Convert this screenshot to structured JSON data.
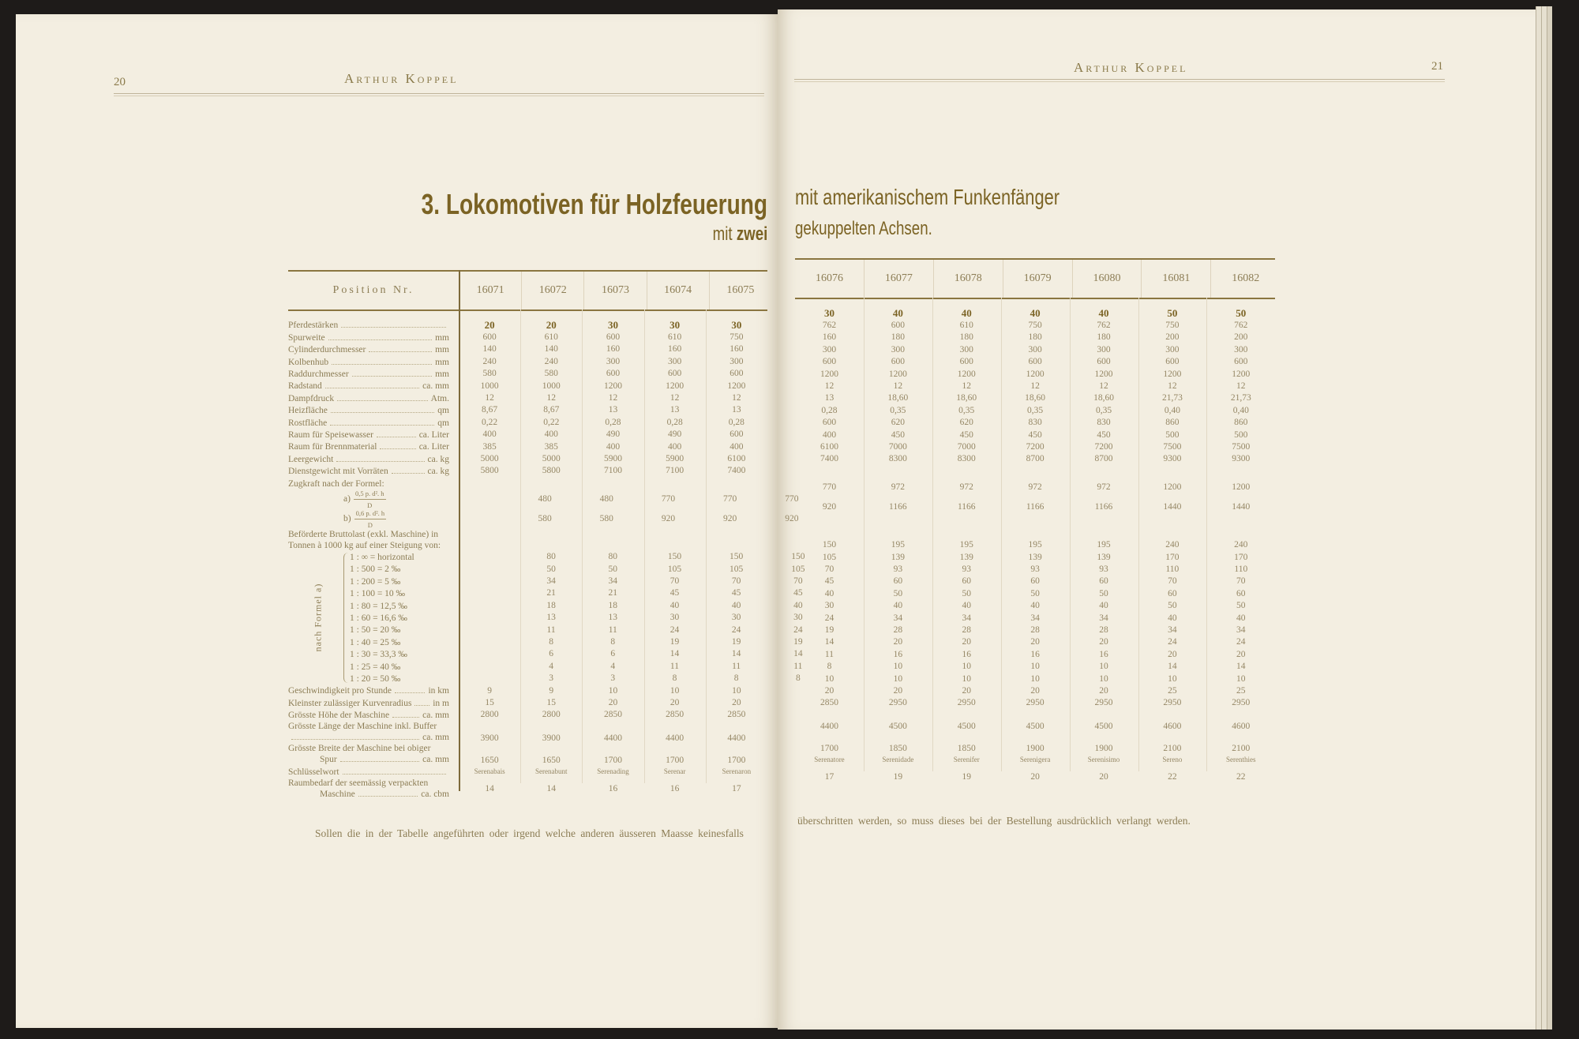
{
  "left_page": {
    "page_number": "20",
    "running_head": "Arthur Koppel"
  },
  "right_page": {
    "page_number": "21",
    "running_head": "Arthur Koppel"
  },
  "title": {
    "left_main": "3. Lokomotiven für Holzfeuerung",
    "left_sub_plain": "mit",
    "left_sub_bold": "zwei",
    "right_main": "mit amerikanischem Funkenfänger",
    "right_sub": "gekuppelten Achsen."
  },
  "table": {
    "position_header": "Position Nr.",
    "left_columns": [
      "16071",
      "16072",
      "16073",
      "16074",
      "16075"
    ],
    "right_columns": [
      "16076",
      "16077",
      "16078",
      "16079",
      "16080",
      "16081",
      "16082"
    ],
    "group_label": "nach Formel a)",
    "rows": [
      {
        "label": "Pferdestärken",
        "unit": "",
        "values": [
          "20",
          "20",
          "30",
          "30",
          "30",
          "30",
          "40",
          "40",
          "40",
          "40",
          "50",
          "50"
        ]
      },
      {
        "label": "Spurweite",
        "unit": "mm",
        "values": [
          "600",
          "610",
          "600",
          "610",
          "750",
          "762",
          "600",
          "610",
          "750",
          "762",
          "750",
          "762"
        ]
      },
      {
        "label": "Cylinderdurchmesser",
        "unit": "mm",
        "values": [
          "140",
          "140",
          "160",
          "160",
          "160",
          "160",
          "180",
          "180",
          "180",
          "180",
          "200",
          "200"
        ]
      },
      {
        "label": "Kolbenhub",
        "unit": "mm",
        "values": [
          "240",
          "240",
          "300",
          "300",
          "300",
          "300",
          "300",
          "300",
          "300",
          "300",
          "300",
          "300"
        ]
      },
      {
        "label": "Raddurchmesser",
        "unit": "mm",
        "values": [
          "580",
          "580",
          "600",
          "600",
          "600",
          "600",
          "600",
          "600",
          "600",
          "600",
          "600",
          "600"
        ]
      },
      {
        "label": "Radstand",
        "unit": "ca. mm",
        "values": [
          "1000",
          "1000",
          "1200",
          "1200",
          "1200",
          "1200",
          "1200",
          "1200",
          "1200",
          "1200",
          "1200",
          "1200"
        ]
      },
      {
        "label": "Dampfdruck",
        "unit": "Atm.",
        "values": [
          "12",
          "12",
          "12",
          "12",
          "12",
          "12",
          "12",
          "12",
          "12",
          "12",
          "12",
          "12"
        ]
      },
      {
        "label": "Heizfläche",
        "unit": "qm",
        "values": [
          "8,67",
          "8,67",
          "13",
          "13",
          "13",
          "13",
          "18,60",
          "18,60",
          "18,60",
          "18,60",
          "21,73",
          "21,73"
        ]
      },
      {
        "label": "Rostfläche",
        "unit": "qm",
        "values": [
          "0,22",
          "0,22",
          "0,28",
          "0,28",
          "0,28",
          "0,28",
          "0,35",
          "0,35",
          "0,35",
          "0,35",
          "0,40",
          "0,40"
        ]
      },
      {
        "label": "Raum für Speisewasser",
        "unit": "ca. Liter",
        "values": [
          "400",
          "400",
          "490",
          "490",
          "600",
          "600",
          "620",
          "620",
          "830",
          "830",
          "860",
          "860"
        ]
      },
      {
        "label": "Raum für Brennmaterial",
        "unit": "ca. Liter",
        "values": [
          "385",
          "385",
          "400",
          "400",
          "400",
          "400",
          "450",
          "450",
          "450",
          "450",
          "500",
          "500"
        ]
      },
      {
        "label": "Leergewicht",
        "unit": "ca. kg",
        "values": [
          "5000",
          "5000",
          "5900",
          "5900",
          "6100",
          "6100",
          "7000",
          "7000",
          "7200",
          "7200",
          "7500",
          "7500"
        ]
      },
      {
        "label": "Dienstgewicht mit Vorräten",
        "unit": "ca. kg",
        "values": [
          "5800",
          "5800",
          "7100",
          "7100",
          "7400",
          "7400",
          "8300",
          "8300",
          "8700",
          "8700",
          "9300",
          "9300"
        ]
      },
      {
        "label": "Zugkraft nach der Formel:",
        "unit": "",
        "values": []
      },
      {
        "prefix": "a)",
        "formula_num": "0,5 p. d². h",
        "formula_den": "D",
        "values": [
          "480",
          "480",
          "770",
          "770",
          "770",
          "770",
          "972",
          "972",
          "972",
          "972",
          "1200",
          "1200"
        ]
      },
      {
        "prefix": "b)",
        "formula_num": "0,6 p. d². h",
        "formula_den": "D",
        "values": [
          "580",
          "580",
          "920",
          "920",
          "920",
          "920",
          "1166",
          "1166",
          "1166",
          "1166",
          "1440",
          "1440"
        ]
      },
      {
        "label": "Beförderte Bruttolast (exkl. Maschine) in",
        "label2": "Tonnen à 1000 kg auf einer Steigung von:",
        "unit": "",
        "values": []
      },
      {
        "gradient": "1 : ∞ = horizontal",
        "values": [
          "80",
          "80",
          "150",
          "150",
          "150",
          "150",
          "195",
          "195",
          "195",
          "195",
          "240",
          "240"
        ]
      },
      {
        "gradient": "1 : 500 = 2 ‰",
        "values": [
          "50",
          "50",
          "105",
          "105",
          "105",
          "105",
          "139",
          "139",
          "139",
          "139",
          "170",
          "170"
        ]
      },
      {
        "gradient": "1 : 200 = 5 ‰",
        "values": [
          "34",
          "34",
          "70",
          "70",
          "70",
          "70",
          "93",
          "93",
          "93",
          "93",
          "110",
          "110"
        ]
      },
      {
        "gradient": "1 : 100 = 10 ‰",
        "values": [
          "21",
          "21",
          "45",
          "45",
          "45",
          "45",
          "60",
          "60",
          "60",
          "60",
          "70",
          "70"
        ]
      },
      {
        "gradient": "1 : 80 = 12,5 ‰",
        "values": [
          "18",
          "18",
          "40",
          "40",
          "40",
          "40",
          "50",
          "50",
          "50",
          "50",
          "60",
          "60"
        ]
      },
      {
        "gradient": "1 : 60 = 16,6 ‰",
        "values": [
          "13",
          "13",
          "30",
          "30",
          "30",
          "30",
          "40",
          "40",
          "40",
          "40",
          "50",
          "50"
        ]
      },
      {
        "gradient": "1 : 50 = 20 ‰",
        "values": [
          "11",
          "11",
          "24",
          "24",
          "24",
          "24",
          "34",
          "34",
          "34",
          "34",
          "40",
          "40"
        ]
      },
      {
        "gradient": "1 : 40 = 25 ‰",
        "values": [
          "8",
          "8",
          "19",
          "19",
          "19",
          "19",
          "28",
          "28",
          "28",
          "28",
          "34",
          "34"
        ]
      },
      {
        "gradient": "1 : 30 = 33,3 ‰",
        "values": [
          "6",
          "6",
          "14",
          "14",
          "14",
          "14",
          "20",
          "20",
          "20",
          "20",
          "24",
          "24"
        ]
      },
      {
        "gradient": "1 : 25 = 40 ‰",
        "values": [
          "4",
          "4",
          "11",
          "11",
          "11",
          "11",
          "16",
          "16",
          "16",
          "16",
          "20",
          "20"
        ]
      },
      {
        "gradient": "1 : 20 = 50 ‰",
        "values": [
          "3",
          "3",
          "8",
          "8",
          "8",
          "8",
          "10",
          "10",
          "10",
          "10",
          "14",
          "14"
        ]
      },
      {
        "label": "Geschwindigkeit pro Stunde",
        "unit": "in km",
        "values": [
          "9",
          "9",
          "10",
          "10",
          "10",
          "10",
          "10",
          "10",
          "10",
          "10",
          "10",
          "10"
        ]
      },
      {
        "label": "Kleinster zulässiger Kurvenradius",
        "unit": "in m",
        "values": [
          "15",
          "15",
          "20",
          "20",
          "20",
          "20",
          "20",
          "20",
          "20",
          "20",
          "25",
          "25"
        ]
      },
      {
        "label": "Grösste Höhe der Maschine",
        "unit": "ca. mm",
        "values": [
          "2800",
          "2800",
          "2850",
          "2850",
          "2850",
          "2850",
          "2950",
          "2950",
          "2950",
          "2950",
          "2950",
          "2950"
        ]
      },
      {
        "label": "Grösste Länge der Maschine inkl. Buffer",
        "label2": "",
        "unit": "ca. mm",
        "values": [
          "3900",
          "3900",
          "4400",
          "4400",
          "4400",
          "4400",
          "4500",
          "4500",
          "4500",
          "4500",
          "4600",
          "4600"
        ]
      },
      {
        "label": "Grösste Breite der Maschine bei obiger",
        "label2": "Spur",
        "unit": "ca. mm",
        "values": [
          "1650",
          "1650",
          "1700",
          "1700",
          "1700",
          "1700",
          "1850",
          "1850",
          "1900",
          "1900",
          "2100",
          "2100"
        ]
      },
      {
        "label": "Schlüsselwort",
        "unit": "",
        "small": true,
        "values": [
          "Serenabais",
          "Serenabunt",
          "Serenading",
          "Serenar",
          "Serenaron",
          "Serenatore",
          "Serenidade",
          "Serenifer",
          "Serenigera",
          "Serenisimo",
          "Sereno",
          "Serenthies"
        ]
      },
      {
        "label": "Raumbedarf der seemässig verpackten",
        "label2": "Maschine",
        "unit": "ca. cbm",
        "values": [
          "14",
          "14",
          "16",
          "16",
          "17",
          "17",
          "19",
          "19",
          "20",
          "20",
          "22",
          "22"
        ]
      }
    ]
  },
  "footer": {
    "left": "Sollen die in der Tabelle angeführten oder irgend welche anderen äusseren Maasse keinesfalls",
    "right": "überschritten werden, so muss dieses bei der Bestellung ausdrücklich verlangt werden."
  }
}
